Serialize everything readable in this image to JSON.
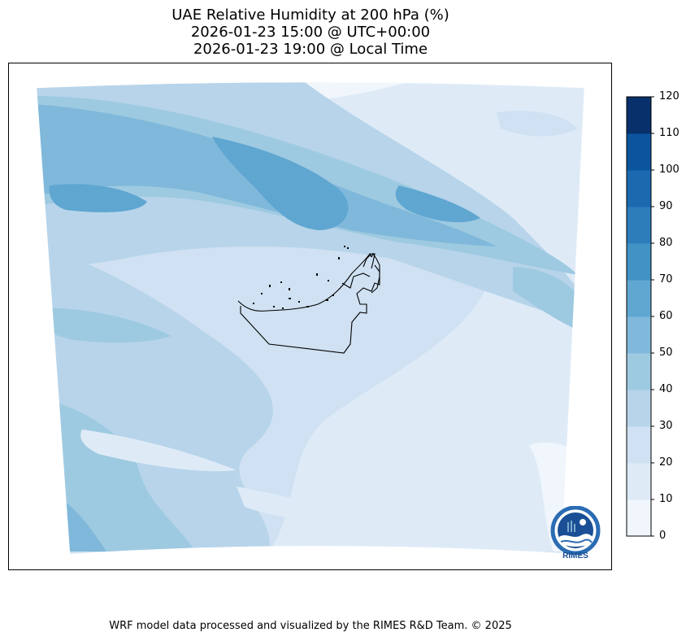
{
  "title": {
    "line1": "UAE Relative Humidity at 200 hPa (%)",
    "line2": "2026-01-23 15:00 @ UTC+00:00",
    "line3": "2026-01-23 19:00 @ Local Time"
  },
  "colorbar": {
    "ticks": [
      "0",
      "10",
      "20",
      "30",
      "40",
      "50",
      "60",
      "70",
      "80",
      "90",
      "100",
      "110",
      "120"
    ],
    "colors": [
      "#f0f6fc",
      "#deebf7",
      "#cfe1f2",
      "#b7d4ea",
      "#9ecae1",
      "#7fb8da",
      "#5fa6d1",
      "#4292c6",
      "#2d7dbb",
      "#1c69af",
      "#0b559f",
      "#08306b"
    ]
  },
  "footer": "WRF model data processed and visualized by the RIMES R&D Team. © 2025",
  "logo": {
    "text": "RIMES",
    "ring_text": "Regional Integrated Multi-Hazard Early Warning System"
  },
  "chart_data": {
    "type": "heatmap",
    "variable": "Relative Humidity",
    "level": "200 hPa",
    "unit": "%",
    "range": [
      0,
      120
    ],
    "levels": [
      0,
      10,
      20,
      30,
      40,
      50,
      60,
      70,
      80,
      90,
      100,
      110,
      120
    ],
    "region": "UAE",
    "valid_time_utc": "2026-01-23 15:00",
    "valid_time_local": "2026-01-23 19:00"
  }
}
